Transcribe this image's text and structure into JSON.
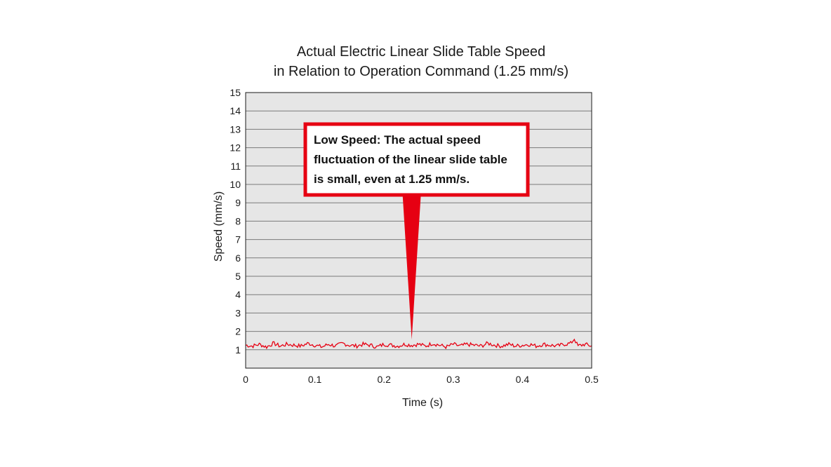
{
  "chart_data": {
    "type": "line",
    "title": "Actual Electric Linear Slide Table Speed",
    "subtitle": "in Relation to Operation Command (1.25 mm/s)",
    "xlabel": "Time (s)",
    "ylabel": "Speed (mm/s)",
    "xlim": [
      0,
      0.5
    ],
    "ylim": [
      0,
      15
    ],
    "xticks": [
      "0",
      "0.1",
      "0.2",
      "0.3",
      "0.4",
      "0.5"
    ],
    "yticks": [
      "1",
      "2",
      "3",
      "4",
      "5",
      "6",
      "7",
      "8",
      "9",
      "10",
      "11",
      "12",
      "13",
      "14",
      "15"
    ],
    "grid": true,
    "background": "#e6e6e6",
    "series": [
      {
        "color": "#e60012",
        "x": [
          0,
          0.01,
          0.02,
          0.03,
          0.04,
          0.05,
          0.06,
          0.07,
          0.08,
          0.09,
          0.1,
          0.11,
          0.12,
          0.13,
          0.14,
          0.15,
          0.16,
          0.17,
          0.18,
          0.19,
          0.2,
          0.21,
          0.22,
          0.23,
          0.24,
          0.25,
          0.26,
          0.27,
          0.28,
          0.29,
          0.3,
          0.31,
          0.32,
          0.33,
          0.34,
          0.35,
          0.36,
          0.37,
          0.38,
          0.39,
          0.4,
          0.41,
          0.42,
          0.43,
          0.44,
          0.45,
          0.46,
          0.47,
          0.475,
          0.48,
          0.49,
          0.5
        ],
        "y": [
          1.25,
          1.2,
          1.3,
          1.15,
          1.35,
          1.2,
          1.3,
          1.25,
          1.2,
          1.35,
          1.25,
          1.15,
          1.3,
          1.2,
          1.35,
          1.25,
          1.2,
          1.3,
          1.25,
          1.15,
          1.3,
          1.25,
          1.2,
          1.3,
          1.25,
          1.3,
          1.2,
          1.35,
          1.25,
          1.15,
          1.3,
          1.2,
          1.3,
          1.25,
          1.2,
          1.35,
          1.25,
          1.2,
          1.3,
          1.2,
          1.25,
          1.3,
          1.2,
          1.3,
          1.25,
          1.2,
          1.3,
          1.35,
          1.6,
          1.2,
          1.3,
          1.2
        ]
      }
    ],
    "annotation": {
      "lines": [
        "Low Speed: The actual speed",
        "fluctuation of the linear slide table",
        "is small, even at 1.25 mm/s."
      ],
      "pointer_x": 0.24,
      "pointer_y": 1.25,
      "border_color": "#e60012"
    }
  }
}
